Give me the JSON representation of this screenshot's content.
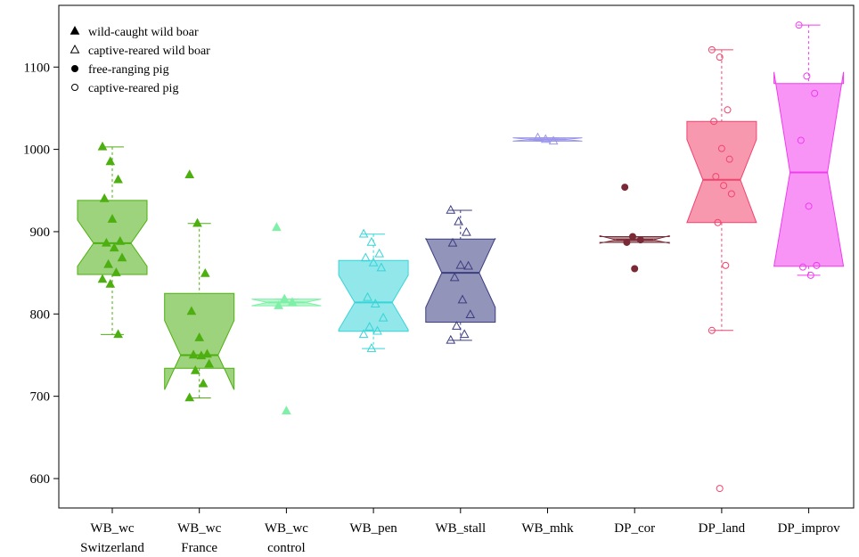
{
  "chart_data": {
    "type": "boxplot",
    "title": "",
    "xlabel": "",
    "ylabel": "",
    "ylim": [
      565,
      1170
    ],
    "yticks": [
      600,
      700,
      800,
      900,
      1000,
      1100
    ],
    "grid": false,
    "legend_position": "top-left",
    "legend": [
      {
        "label": "wild-caught wild boar",
        "marker": "filled-triangle"
      },
      {
        "label": "captive-reared wild boar",
        "marker": "open-triangle"
      },
      {
        "label": "free-ranging pig",
        "marker": "filled-circle"
      },
      {
        "label": "captive-reared pig",
        "marker": "open-circle"
      }
    ],
    "groups": [
      {
        "line1": "WB_wc",
        "line2": "Switzerland",
        "color": "#4daf10",
        "marker": "filled-triangle",
        "stats": {
          "whisker_low": 775,
          "q1": 848,
          "median": 886,
          "q3": 938,
          "whisker_high": 1003,
          "notch_low": 858,
          "notch_high": 914
        },
        "points": [
          1003,
          985,
          963,
          940,
          915,
          888,
          886,
          880,
          868,
          860,
          850,
          842,
          836,
          775
        ]
      },
      {
        "line1": "WB_wc",
        "line2": "France",
        "color": "#4daf10",
        "marker": "filled-triangle",
        "stats": {
          "whisker_low": 698,
          "q1": 734,
          "median": 750,
          "q3": 825,
          "whisker_high": 910,
          "notch_low": 708,
          "notch_high": 792
        },
        "points": [
          969,
          910,
          849,
          803,
          771,
          751,
          750,
          749,
          739,
          731,
          715,
          698
        ]
      },
      {
        "line1": "WB_wc",
        "line2": "control",
        "color": "#7ff0a8",
        "marker": "filled-triangle",
        "stats": {
          "whisker_low": 810,
          "q1": 810,
          "median": 814,
          "q3": 818,
          "whisker_high": 818,
          "notch_low": 810,
          "notch_high": 818
        },
        "points": [
          905,
          818,
          814,
          810,
          682
        ]
      },
      {
        "line1": "WB_pen",
        "line2": "",
        "color": "#37d4d8",
        "marker": "open-triangle",
        "stats": {
          "whisker_low": 758,
          "q1": 779,
          "median": 814,
          "q3": 865,
          "whisker_high": 897,
          "notch_low": 781,
          "notch_high": 847
        },
        "points": [
          897,
          887,
          873,
          868,
          862,
          856,
          820,
          812,
          795,
          784,
          779,
          775,
          758
        ]
      },
      {
        "line1": "WB_stall",
        "line2": "",
        "color": "#3b3d80",
        "marker": "open-triangle",
        "stats": {
          "whisker_low": 768,
          "q1": 790,
          "median": 850,
          "q3": 891,
          "whisker_high": 926,
          "notch_low": 808,
          "notch_high": 892
        },
        "points": [
          926,
          912,
          899,
          886,
          859,
          858,
          844,
          817,
          799,
          785,
          775,
          768
        ]
      },
      {
        "line1": "WB_mhk",
        "line2": "",
        "color": "#9b96ea",
        "marker": "open-triangle",
        "stats": {
          "whisker_low": 1010,
          "q1": 1010,
          "median": 1012,
          "q3": 1014,
          "whisker_high": 1014,
          "notch_low": 1010,
          "notch_high": 1014
        },
        "points": [
          1014,
          1012,
          1010
        ]
      },
      {
        "line1": "DP_cor",
        "line2": "",
        "color": "#7a2a36",
        "marker": "filled-circle",
        "stats": {
          "whisker_low": 887,
          "q1": 887,
          "median": 890,
          "q3": 894,
          "whisker_high": 894,
          "notch_low": 886,
          "notch_high": 895
        },
        "points": [
          954,
          894,
          890,
          887,
          855
        ]
      },
      {
        "line1": "DP_land",
        "line2": "",
        "color": "#f0446e",
        "marker": "open-circle",
        "stats": {
          "whisker_low": 780,
          "q1": 911,
          "median": 963,
          "q3": 1034,
          "whisker_high": 1121,
          "notch_low": 911,
          "notch_high": 1012
        },
        "points": [
          1121,
          1112,
          1048,
          1034,
          1001,
          988,
          967,
          956,
          946,
          911,
          859,
          780,
          588
        ]
      },
      {
        "line1": "DP_improv",
        "line2": "",
        "color": "#f03cee",
        "marker": "open-circle",
        "stats": {
          "whisker_low": 847,
          "q1": 858,
          "median": 972,
          "q3": 1080,
          "whisker_high": 1151,
          "notch_low": 858,
          "notch_high": 1094
        },
        "points": [
          1151,
          1089,
          1068,
          1011,
          931,
          859,
          857,
          847
        ]
      }
    ]
  }
}
